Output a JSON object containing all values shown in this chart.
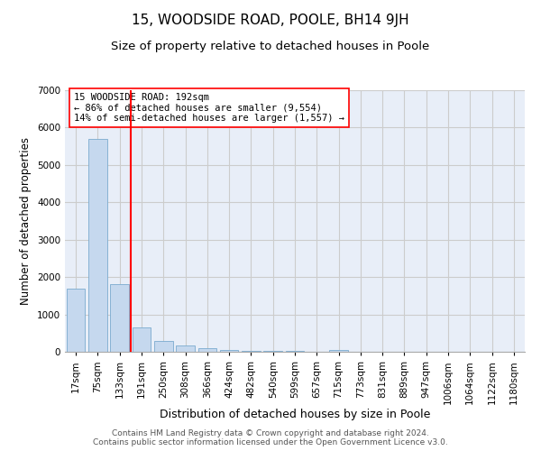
{
  "title": "15, WOODSIDE ROAD, POOLE, BH14 9JH",
  "subtitle": "Size of property relative to detached houses in Poole",
  "xlabel": "Distribution of detached houses by size in Poole",
  "ylabel": "Number of detached properties",
  "bar_categories": [
    "17sqm",
    "75sqm",
    "133sqm",
    "191sqm",
    "250sqm",
    "308sqm",
    "366sqm",
    "424sqm",
    "482sqm",
    "540sqm",
    "599sqm",
    "657sqm",
    "715sqm",
    "773sqm",
    "831sqm",
    "889sqm",
    "947sqm",
    "1006sqm",
    "1064sqm",
    "1122sqm",
    "1180sqm"
  ],
  "bar_values": [
    1700,
    5700,
    1800,
    650,
    300,
    175,
    100,
    50,
    30,
    20,
    15,
    10,
    50,
    0,
    0,
    0,
    0,
    0,
    0,
    0,
    0
  ],
  "bar_color": "#c5d8ee",
  "bar_edge_color": "#7aabcf",
  "highlight_line_index": 3,
  "highlight_line_color": "red",
  "annotation_text": "15 WOODSIDE ROAD: 192sqm\n← 86% of detached houses are smaller (9,554)\n14% of semi-detached houses are larger (1,557) →",
  "annotation_box_color": "white",
  "annotation_box_edge_color": "red",
  "ylim": [
    0,
    7000
  ],
  "yticks": [
    0,
    1000,
    2000,
    3000,
    4000,
    5000,
    6000,
    7000
  ],
  "grid_color": "#cccccc",
  "background_color": "#e8eef8",
  "footer_text": "Contains HM Land Registry data © Crown copyright and database right 2024.\nContains public sector information licensed under the Open Government Licence v3.0.",
  "title_fontsize": 11,
  "subtitle_fontsize": 9.5,
  "xlabel_fontsize": 9,
  "ylabel_fontsize": 8.5,
  "tick_fontsize": 7.5,
  "annotation_fontsize": 7.5,
  "footer_fontsize": 6.5
}
